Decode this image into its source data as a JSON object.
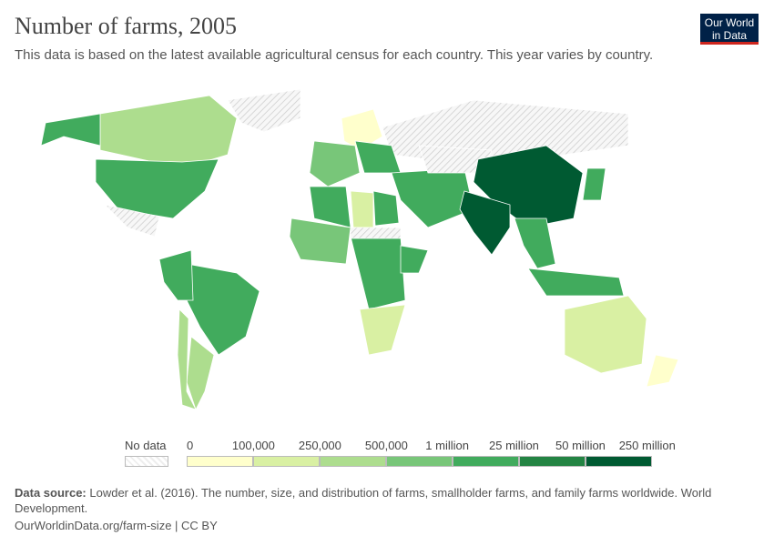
{
  "header": {
    "title": "Number of farms, 2005",
    "subtitle": "This data is based on the latest available agricultural census for each country. This year varies by country.",
    "logo": "Our World in Data"
  },
  "legend": {
    "no_data": "No data",
    "no_data_color": "#eeeeee",
    "ticks": [
      "0",
      "100,000",
      "250,000",
      "500,000",
      "1 million",
      "25 million",
      "50 million",
      "250 million"
    ],
    "colors": [
      "#ffffcc",
      "#d9f0a3",
      "#addd8e",
      "#78c679",
      "#41ab5d",
      "#238443",
      "#005a32"
    ]
  },
  "regions": [
    {
      "name": "Canada",
      "bin": 2
    },
    {
      "name": "United States",
      "bin": 4
    },
    {
      "name": "Alaska",
      "bin": 4
    },
    {
      "name": "Greenland",
      "bin": -1
    },
    {
      "name": "Mexico",
      "bin": -1
    },
    {
      "name": "Brazil",
      "bin": 4
    },
    {
      "name": "Peru/Colombia",
      "bin": 4
    },
    {
      "name": "Argentina",
      "bin": 2
    },
    {
      "name": "Chile",
      "bin": 2
    },
    {
      "name": "Russia",
      "bin": -1
    },
    {
      "name": "Scandinavia",
      "bin": 0
    },
    {
      "name": "Western Europe",
      "bin": 3
    },
    {
      "name": "Eastern Europe",
      "bin": 4
    },
    {
      "name": "Algeria",
      "bin": 4
    },
    {
      "name": "Libya",
      "bin": 1
    },
    {
      "name": "Egypt",
      "bin": 4
    },
    {
      "name": "West Africa",
      "bin": 3
    },
    {
      "name": "Central Africa",
      "bin": 4
    },
    {
      "name": "Ethiopia",
      "bin": 4
    },
    {
      "name": "Southern Africa",
      "bin": 1
    },
    {
      "name": "Sahara",
      "bin": -1
    },
    {
      "name": "Middle East",
      "bin": 4
    },
    {
      "name": "Kazakhstan",
      "bin": -1
    },
    {
      "name": "China",
      "bin": 6
    },
    {
      "name": "India",
      "bin": 6
    },
    {
      "name": "Southeast Asia",
      "bin": 4
    },
    {
      "name": "Japan",
      "bin": 4
    },
    {
      "name": "Indonesia",
      "bin": 4
    },
    {
      "name": "Australia",
      "bin": 1
    },
    {
      "name": "New Zealand",
      "bin": 0
    }
  ],
  "footer": {
    "source_label": "Data source:",
    "source": "Lowder et al. (2016). The number, size, and distribution of farms, smallholder farms, and family farms worldwide. World Development.",
    "url": "OurWorldinData.org/farm-size | CC BY"
  }
}
